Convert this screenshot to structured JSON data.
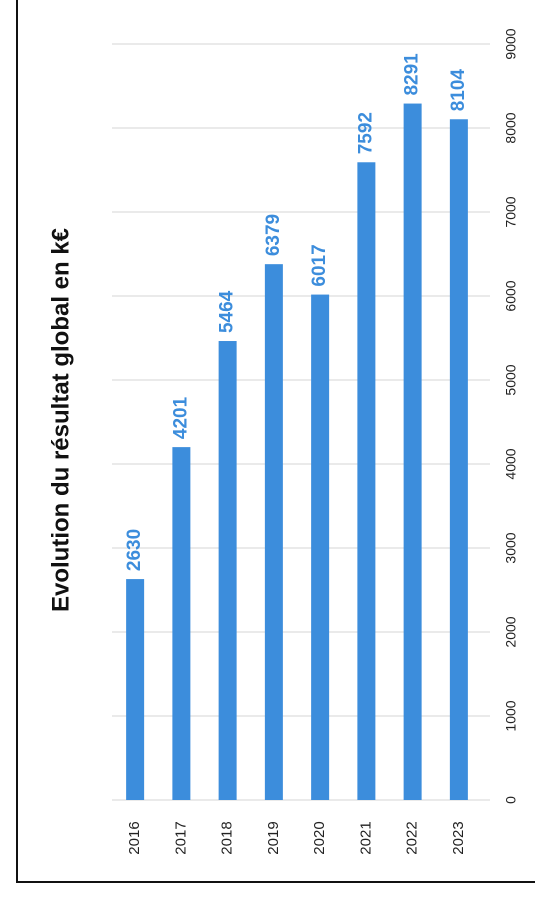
{
  "chart_data": {
    "type": "bar",
    "title": "Evolution du résultat global en k€",
    "categories": [
      "2016",
      "2017",
      "2018",
      "2019",
      "2020",
      "2021",
      "2022",
      "2023"
    ],
    "values": [
      2630,
      4201,
      5464,
      6379,
      6017,
      7592,
      8291,
      8104
    ],
    "color": "#3c8ddc",
    "ylim": [
      0,
      9000
    ],
    "yticks": [
      0,
      1000,
      2000,
      3000,
      4000,
      5000,
      6000,
      7000,
      8000,
      9000
    ],
    "grid": true
  }
}
